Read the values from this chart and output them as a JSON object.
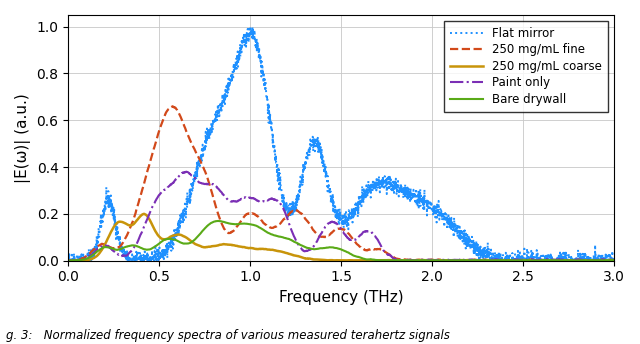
{
  "xlabel": "Frequency (THz)",
  "ylabel": "|E(ω)| (a.u.)",
  "xlim": [
    0,
    3
  ],
  "ylim": [
    0,
    1.05
  ],
  "xticks": [
    0,
    0.5,
    1,
    1.5,
    2,
    2.5,
    3
  ],
  "yticks": [
    0,
    0.2,
    0.4,
    0.6,
    0.8,
    1
  ],
  "figsize": [
    6.4,
    3.44
  ],
  "dpi": 100,
  "caption": "g. 3:   Normalized frequency spectra of various measured terahertz signals",
  "lines": [
    {
      "label": "Flat mirror",
      "color": "#1e90ff",
      "linestyle": ":",
      "linewidth": 1.4
    },
    {
      "label": "250 mg/mL fine",
      "color": "#d2491a",
      "linestyle": "--",
      "linewidth": 1.6
    },
    {
      "label": "250 mg/mL coarse",
      "color": "#c8940a",
      "linestyle": "-",
      "linewidth": 1.8
    },
    {
      "label": "Paint only",
      "color": "#7b2fb5",
      "linestyle": "-.",
      "linewidth": 1.5
    },
    {
      "label": "Bare drywall",
      "color": "#5aaa18",
      "linestyle": "-",
      "linewidth": 1.5
    }
  ],
  "background_color": "#ffffff",
  "grid_color": "#c8c8c8"
}
